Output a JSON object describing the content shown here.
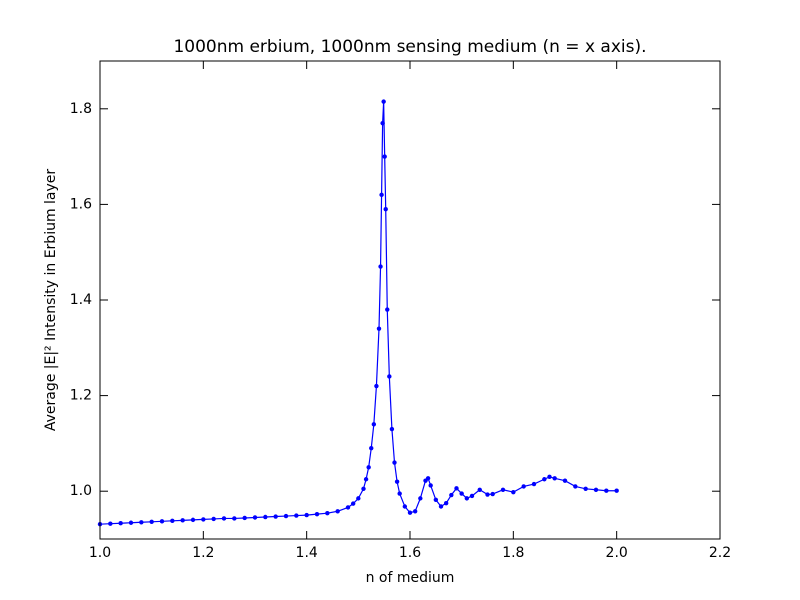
{
  "chart_data": {
    "type": "line",
    "title": "1000nm erbium, 1000nm sensing medium (n = x axis).",
    "xlabel": "n of medium",
    "ylabel": "Average |E|² Intensity in Erbium layer",
    "x": [
      1.0,
      1.02,
      1.04,
      1.06,
      1.08,
      1.1,
      1.12,
      1.14,
      1.16,
      1.18,
      1.2,
      1.22,
      1.24,
      1.26,
      1.28,
      1.3,
      1.32,
      1.34,
      1.36,
      1.38,
      1.4,
      1.42,
      1.44,
      1.46,
      1.48,
      1.49,
      1.5,
      1.51,
      1.515,
      1.52,
      1.525,
      1.53,
      1.535,
      1.54,
      1.543,
      1.545,
      1.547,
      1.549,
      1.551,
      1.553,
      1.556,
      1.56,
      1.565,
      1.57,
      1.575,
      1.58,
      1.59,
      1.6,
      1.61,
      1.62,
      1.63,
      1.635,
      1.64,
      1.65,
      1.66,
      1.67,
      1.68,
      1.69,
      1.7,
      1.71,
      1.72,
      1.735,
      1.75,
      1.76,
      1.78,
      1.8,
      1.82,
      1.84,
      1.86,
      1.87,
      1.88,
      1.9,
      1.92,
      1.94,
      1.96,
      1.98,
      2.0
    ],
    "values": [
      0.931,
      0.932,
      0.933,
      0.934,
      0.935,
      0.936,
      0.937,
      0.938,
      0.939,
      0.94,
      0.941,
      0.942,
      0.943,
      0.943,
      0.944,
      0.945,
      0.946,
      0.947,
      0.948,
      0.949,
      0.95,
      0.952,
      0.954,
      0.958,
      0.966,
      0.974,
      0.985,
      1.005,
      1.025,
      1.05,
      1.09,
      1.14,
      1.22,
      1.34,
      1.47,
      1.62,
      1.77,
      1.815,
      1.7,
      1.59,
      1.38,
      1.24,
      1.13,
      1.06,
      1.02,
      0.995,
      0.968,
      0.955,
      0.958,
      0.985,
      1.022,
      1.027,
      1.012,
      0.982,
      0.968,
      0.975,
      0.992,
      1.006,
      0.995,
      0.985,
      0.99,
      1.003,
      0.993,
      0.994,
      1.003,
      0.998,
      1.01,
      1.015,
      1.025,
      1.03,
      1.027,
      1.022,
      1.01,
      1.005,
      1.003,
      1.001,
      1.001
    ],
    "color": "#0000ff",
    "markers": true,
    "xlim": [
      1.0,
      2.2
    ],
    "ylim": [
      0.9,
      1.9
    ],
    "xticks": [
      {
        "value": 1,
        "label": "1.0"
      },
      1.2,
      1.4,
      1.6,
      1.8,
      {
        "value": 2,
        "label": "2.0"
      },
      2.2
    ],
    "yticks": [
      {
        "value": 1,
        "label": "1.0"
      },
      1.2,
      1.4,
      1.6,
      1.8
    ]
  }
}
